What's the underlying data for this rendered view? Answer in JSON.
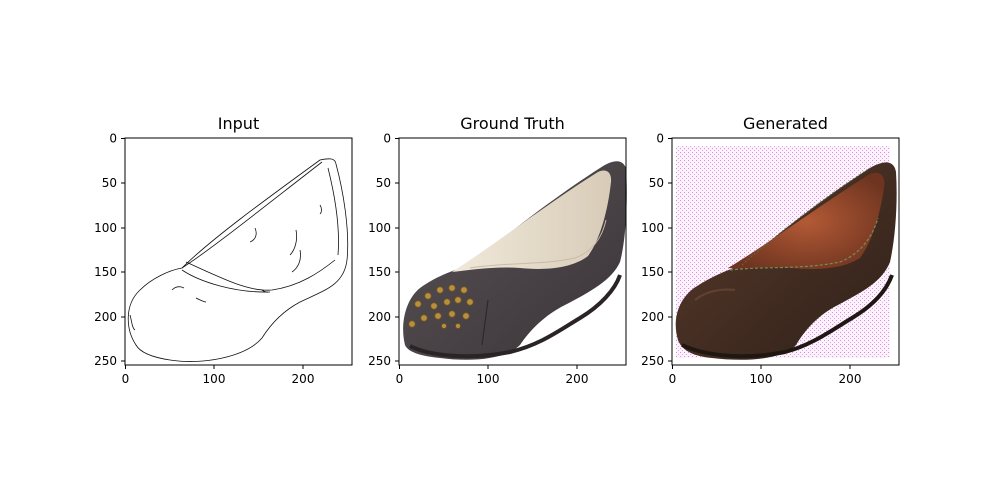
{
  "figure": {
    "panels": [
      {
        "title": "Input",
        "image": "edge-map line drawing of a ballet flat shoe",
        "y_ticks": [
          "0",
          "50",
          "100",
          "150",
          "200",
          "250"
        ],
        "x_ticks": [
          "0",
          "100",
          "200"
        ]
      },
      {
        "title": "Ground Truth",
        "image": "photo of a charcoal grey suede ballet flat with gold studs on the toe and a cream lining",
        "y_ticks": [
          "0",
          "50",
          "100",
          "150",
          "200",
          "250"
        ],
        "x_ticks": [
          "0",
          "100",
          "200"
        ]
      },
      {
        "title": "Generated",
        "image": "generated brown leather ballet flat with a faint magenta checkerboard artifact background",
        "y_ticks": [
          "0",
          "50",
          "100",
          "150",
          "200",
          "250"
        ],
        "x_ticks": [
          "0",
          "100",
          "200"
        ]
      }
    ]
  }
}
